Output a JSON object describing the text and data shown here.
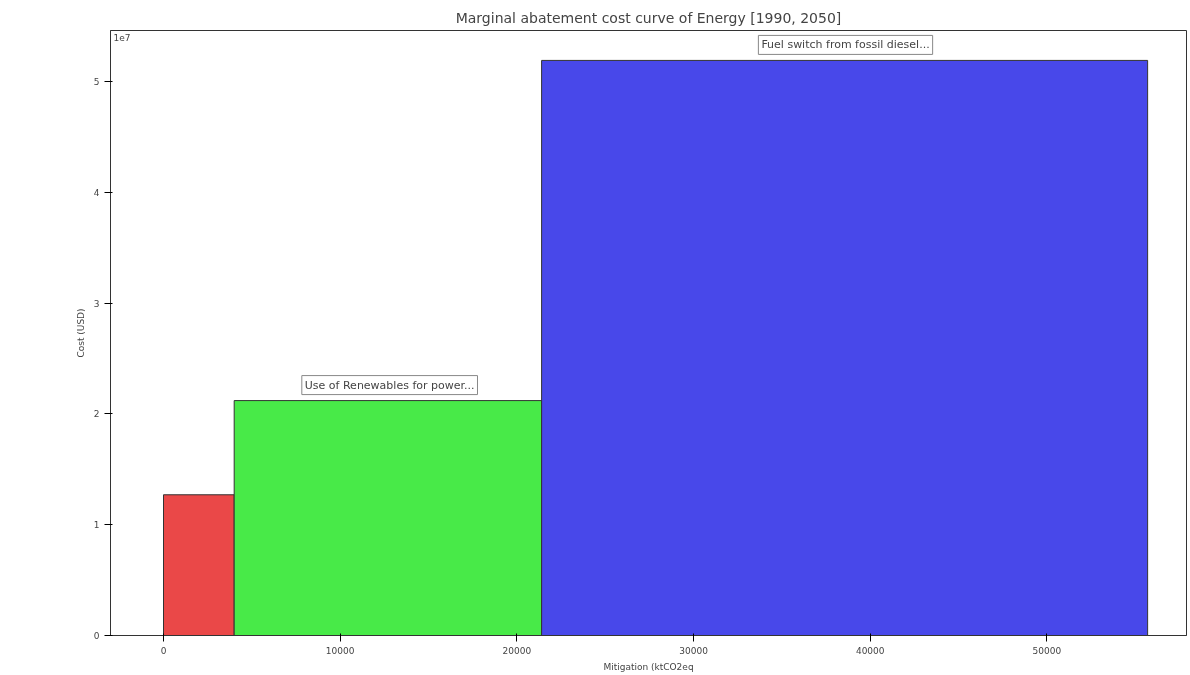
{
  "chart_data": {
    "type": "histogram",
    "title": "Marginal abatement cost curve of Energy [1990, 2050]",
    "xlabel": "Mitigation (ktCO2eq",
    "ylabel": "Cost (USD)",
    "bins": [
      0,
      4000,
      21400,
      55700
    ],
    "values": [
      1.27,
      2.12,
      5.19
    ],
    "colors": [
      "#ea4848",
      "#48ea48",
      "#4848ea"
    ],
    "xlim": [
      -3000,
      57900
    ],
    "ylim": [
      0,
      5.46
    ],
    "xticks": [
      0,
      10000,
      20000,
      30000,
      40000,
      50000
    ],
    "yticks": [
      0,
      1,
      2,
      3,
      4,
      5
    ],
    "annotations": [
      "1e7",
      {
        "text": "Use of Renewables for power...",
        "x": 12800,
        "y": 2.12
      },
      {
        "text": "Fuel switch from fossil diesel...",
        "x": 38600,
        "y": 5.19
      }
    ],
    "grid": false
  }
}
